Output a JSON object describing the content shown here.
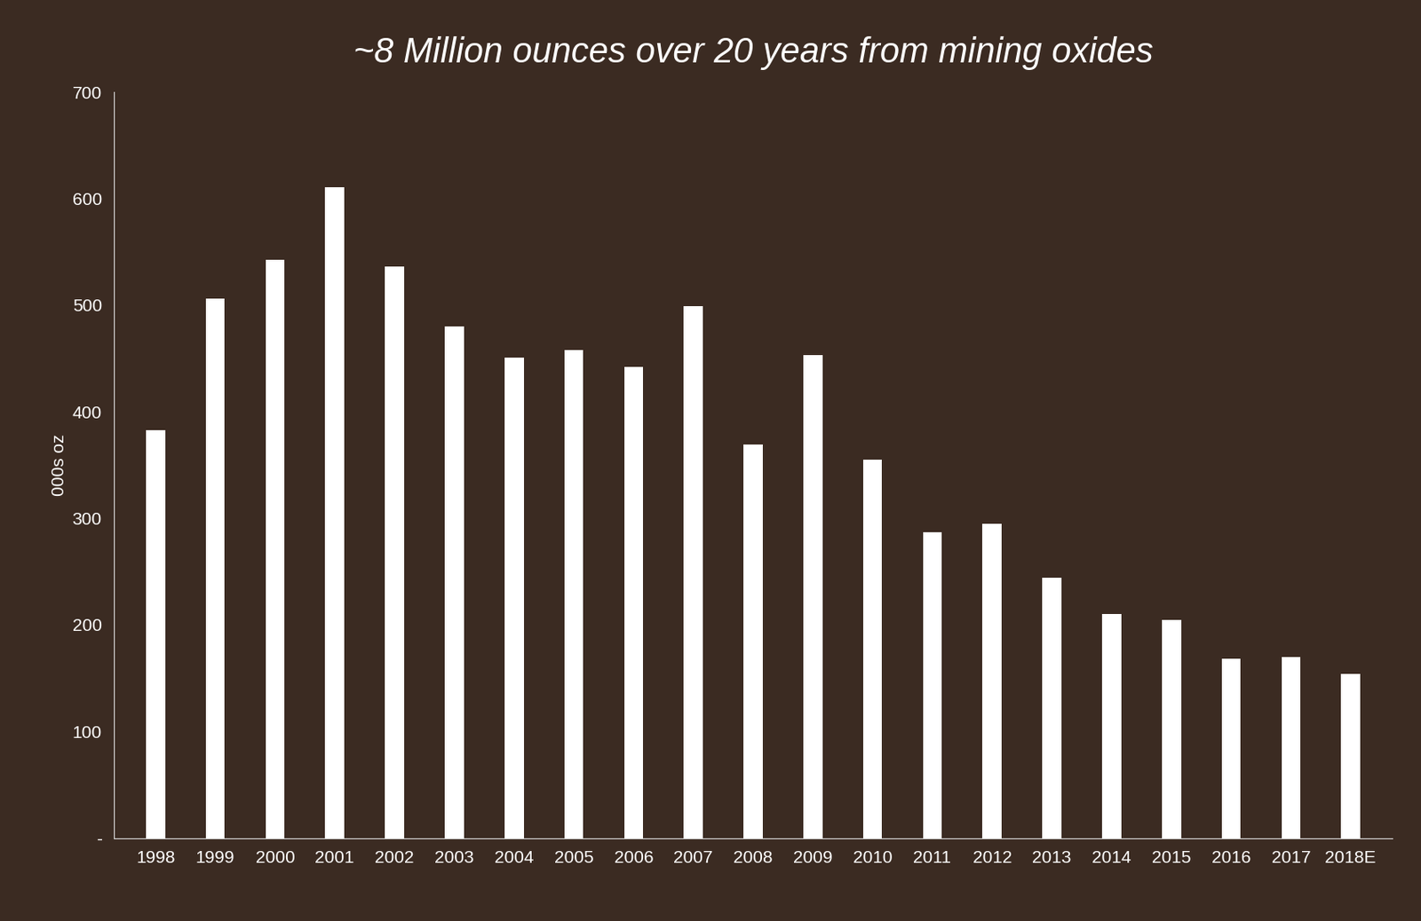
{
  "chart_data": {
    "type": "bar",
    "title": "~8 Million ounces over 20 years from mining oxides",
    "y_label": "000s oz",
    "categories": [
      "1998",
      "1999",
      "2000",
      "2001",
      "2002",
      "2003",
      "2004",
      "2005",
      "2006",
      "2007",
      "2008",
      "2009",
      "2010",
      "2011",
      "2012",
      "2013",
      "2014",
      "2015",
      "2016",
      "2017",
      "2018E"
    ],
    "values": [
      383,
      506,
      543,
      611,
      536,
      480,
      451,
      458,
      442,
      499,
      369,
      453,
      355,
      287,
      295,
      244,
      210,
      205,
      168,
      170,
      154
    ],
    "color": "#ffffff",
    "ylim": [
      0,
      700
    ],
    "yticks": [
      {
        "value": 0,
        "label": "-"
      },
      100,
      200,
      300,
      400,
      500,
      600,
      700
    ],
    "grid": false
  }
}
